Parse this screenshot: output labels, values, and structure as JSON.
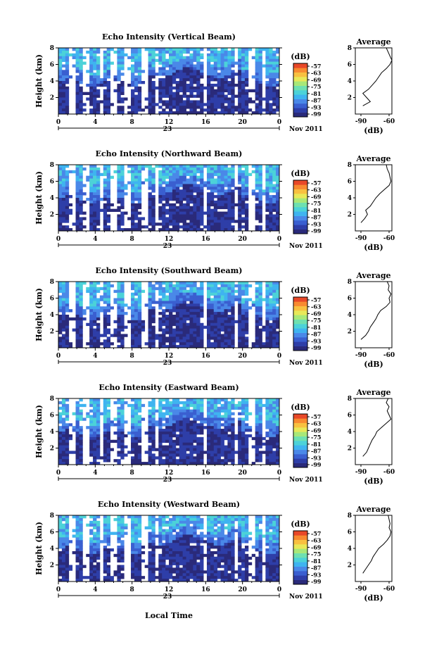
{
  "chart_data": {
    "type": "heatmap",
    "colors": [
      "#2a2a7a",
      "#2e3ea8",
      "#3a5fd0",
      "#4a88e8",
      "#3fb4f0",
      "#4cd2d8",
      "#6ee0b0",
      "#a8e878",
      "#e8e858",
      "#f8c040",
      "#f88a30",
      "#e84828"
    ],
    "panels": [
      {
        "title": "Echo Intensity (Vertical Beam)",
        "ylabel": "Height (km)",
        "ylim": [
          0,
          8
        ],
        "yticks": [
          "2",
          "4",
          "6",
          "8"
        ],
        "xlim": [
          0,
          24
        ],
        "xticks": [
          "0",
          "4",
          "8",
          "12",
          "16",
          "20",
          "0"
        ],
        "date_label": "23",
        "month_label": "Nov 2011",
        "colorbar": {
          "unit": "(dB)",
          "levels": [
            "-57",
            "-63",
            "-69",
            "-75",
            "-81",
            "-87",
            "-93",
            "-99"
          ]
        },
        "average": {
          "title": "Average",
          "xlabel": "(dB)",
          "xticks": [
            "-90",
            "-60"
          ],
          "profile": [
            [
              1,
              -88
            ],
            [
              1.5,
              -80
            ],
            [
              2,
              -84
            ],
            [
              2.5,
              -88
            ],
            [
              3,
              -82
            ],
            [
              3.5,
              -78
            ],
            [
              4,
              -74
            ],
            [
              4.5,
              -71
            ],
            [
              5,
              -68
            ],
            [
              5.5,
              -63
            ],
            [
              6,
              -59
            ],
            [
              6.5,
              -57
            ],
            [
              7,
              -59
            ],
            [
              7.5,
              -61
            ],
            [
              8,
              -63
            ]
          ]
        }
      },
      {
        "title": "Echo Intensity (Northward Beam)",
        "ylabel": "Height (km)",
        "ylim": [
          0,
          8
        ],
        "yticks": [
          "2",
          "4",
          "6",
          "8"
        ],
        "xlim": [
          0,
          24
        ],
        "xticks": [
          "0",
          "4",
          "8",
          "12",
          "16",
          "20",
          "0"
        ],
        "date_label": "23",
        "month_label": "Nov 2011",
        "colorbar": {
          "unit": "(dB)",
          "levels": [
            "-57",
            "-63",
            "-69",
            "-75",
            "-81",
            "-87",
            "-93",
            "-99"
          ]
        },
        "average": {
          "title": "Average",
          "xlabel": "(dB)",
          "xticks": [
            "-90",
            "-60"
          ],
          "profile": [
            [
              1,
              -90
            ],
            [
              1.5,
              -86
            ],
            [
              2,
              -83
            ],
            [
              2.5,
              -85
            ],
            [
              3,
              -80
            ],
            [
              3.5,
              -77
            ],
            [
              4,
              -74
            ],
            [
              4.5,
              -70
            ],
            [
              5,
              -65
            ],
            [
              5.5,
              -60
            ],
            [
              6,
              -58
            ],
            [
              6.5,
              -59
            ],
            [
              7,
              -60
            ],
            [
              7.5,
              -62
            ],
            [
              8,
              -63
            ]
          ]
        }
      },
      {
        "title": "Echo Intensity (Southward Beam)",
        "ylabel": "Height (km)",
        "ylim": [
          0,
          8
        ],
        "yticks": [
          "2",
          "4",
          "6",
          "8"
        ],
        "xlim": [
          0,
          24
        ],
        "xticks": [
          "0",
          "4",
          "8",
          "12",
          "16",
          "20",
          "0"
        ],
        "date_label": "23",
        "month_label": "Nov 2011",
        "colorbar": {
          "unit": "(dB)",
          "levels": [
            "-57",
            "-63",
            "-69",
            "-75",
            "-81",
            "-87",
            "-93",
            "-99"
          ]
        },
        "average": {
          "title": "Average",
          "xlabel": "(dB)",
          "xticks": [
            "-90",
            "-60"
          ],
          "profile": [
            [
              1,
              -90
            ],
            [
              1.5,
              -85
            ],
            [
              2,
              -82
            ],
            [
              2.5,
              -80
            ],
            [
              3,
              -77
            ],
            [
              3.5,
              -74
            ],
            [
              4,
              -72
            ],
            [
              4.5,
              -69
            ],
            [
              5,
              -63
            ],
            [
              5.5,
              -59
            ],
            [
              6,
              -60
            ],
            [
              6.5,
              -58
            ],
            [
              7,
              -61
            ],
            [
              7.5,
              -60
            ],
            [
              8,
              -62
            ]
          ]
        }
      },
      {
        "title": "Echo Intensity (Eastward Beam)",
        "ylabel": "Height (km)",
        "ylim": [
          0,
          8
        ],
        "yticks": [
          "2",
          "4",
          "6",
          "8"
        ],
        "xlim": [
          0,
          24
        ],
        "xticks": [
          "0",
          "4",
          "8",
          "12",
          "16",
          "20",
          "0"
        ],
        "date_label": "23",
        "month_label": "Nov 2011",
        "colorbar": {
          "unit": "(dB)",
          "levels": [
            "-57",
            "-63",
            "-69",
            "-75",
            "-81",
            "-87",
            "-93",
            "-99"
          ]
        },
        "average": {
          "title": "Average",
          "xlabel": "(dB)",
          "xticks": [
            "-90",
            "-60"
          ],
          "profile": [
            [
              1,
              -88
            ],
            [
              1.5,
              -84
            ],
            [
              2,
              -82
            ],
            [
              2.5,
              -80
            ],
            [
              3,
              -78
            ],
            [
              3.5,
              -75
            ],
            [
              4,
              -73
            ],
            [
              4.5,
              -68
            ],
            [
              5,
              -63
            ],
            [
              5.5,
              -58
            ],
            [
              6,
              -60
            ],
            [
              6.5,
              -62
            ],
            [
              7,
              -60
            ],
            [
              7.5,
              -63
            ],
            [
              8,
              -61
            ]
          ]
        }
      },
      {
        "title": "Echo Intensity (Westward Beam)",
        "ylabel": "Height (km)",
        "ylim": [
          0,
          8
        ],
        "yticks": [
          "2",
          "4",
          "6",
          "8"
        ],
        "xlim": [
          0,
          24
        ],
        "xticks": [
          "0",
          "4",
          "8",
          "12",
          "16",
          "20",
          "0"
        ],
        "date_label": "23",
        "month_label": "Nov 2011",
        "colorbar": {
          "unit": "(dB)",
          "levels": [
            "-57",
            "-63",
            "-69",
            "-75",
            "-81",
            "-87",
            "-93",
            "-99"
          ]
        },
        "average": {
          "title": "Average",
          "xlabel": "(dB)",
          "xticks": [
            "-90",
            "-60"
          ],
          "profile": [
            [
              1,
              -88
            ],
            [
              1.5,
              -85
            ],
            [
              2,
              -82
            ],
            [
              2.5,
              -79
            ],
            [
              3,
              -77
            ],
            [
              3.5,
              -74
            ],
            [
              4,
              -71
            ],
            [
              4.5,
              -66
            ],
            [
              5,
              -62
            ],
            [
              5.5,
              -59
            ],
            [
              6,
              -58
            ],
            [
              6.5,
              -60
            ],
            [
              7,
              -59
            ],
            [
              7.5,
              -60
            ],
            [
              8,
              -61
            ]
          ]
        }
      }
    ],
    "xlabel": "Local Time"
  }
}
